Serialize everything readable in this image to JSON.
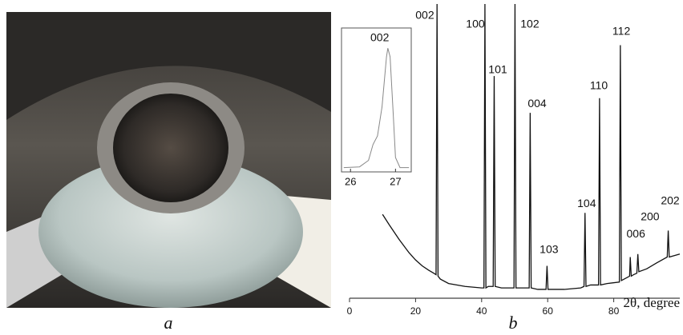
{
  "panel_labels": [
    "a",
    "b"
  ],
  "chart_data": [
    {
      "type": "line",
      "x_label": "2θ, degree",
      "x": [
        10,
        12,
        15,
        18,
        20,
        22,
        24,
        25.5,
        26.2,
        26.5,
        26.8,
        27.5,
        30,
        35,
        40,
        40.7,
        41,
        41.3,
        42,
        43.5,
        43.8,
        44.1,
        46,
        49.8,
        50.1,
        50.4,
        52,
        54.4,
        54.7,
        55,
        57,
        59.5,
        59.8,
        60.1,
        65,
        70,
        71,
        71.3,
        71.6,
        73,
        75.4,
        75.7,
        76,
        78,
        81.7,
        82,
        82.3,
        84,
        84.8,
        85,
        85.3,
        86,
        87,
        87.3,
        87.6,
        90,
        93,
        96.2,
        96.5,
        96.8,
        100
      ],
      "series": [
        {
          "color": "#111111",
          "values": [
            28.5,
            25,
            20,
            15.5,
            13,
            11,
            9.5,
            8.5,
            8,
            100,
            7.5,
            6.5,
            5,
            4,
            3.5,
            3.5,
            100,
            3.5,
            4,
            4,
            75.5,
            4,
            3.5,
            3.5,
            100,
            3.5,
            3.5,
            3.5,
            63,
            3.5,
            3,
            3,
            11,
            3,
            3,
            3.5,
            4,
            29,
            4,
            4.5,
            4.5,
            68,
            4.5,
            5,
            5.5,
            86,
            6,
            7,
            7.5,
            14,
            7.5,
            8,
            8.5,
            15,
            9,
            10,
            12,
            14,
            23,
            14,
            15
          ]
        }
      ],
      "xlim": [
        0,
        100
      ],
      "xticks": [
        0,
        20,
        40,
        60,
        80
      ],
      "ylim": [
        0,
        100
      ],
      "annotations": [
        {
          "text": "002",
          "x": 22.8,
          "y": 96
        },
        {
          "text": "100",
          "x": 38.1,
          "y": 93
        },
        {
          "text": "101",
          "x": 44.9,
          "y": 77.5
        },
        {
          "text": "102",
          "x": 54.6,
          "y": 93
        },
        {
          "text": "004",
          "x": 56.8,
          "y": 66
        },
        {
          "text": "103",
          "x": 60.4,
          "y": 16.3
        },
        {
          "text": "104",
          "x": 71.8,
          "y": 32
        },
        {
          "text": "110",
          "x": 75.5,
          "y": 72
        },
        {
          "text": "112",
          "x": 82.3,
          "y": 90.5
        },
        {
          "text": "006",
          "x": 86.7,
          "y": 21.7
        },
        {
          "text": "200",
          "x": 91,
          "y": 27.5
        },
        {
          "text": "202",
          "x": 97.1,
          "y": 33
        }
      ]
    },
    {
      "type": "line",
      "x": [
        25.85,
        26.2,
        26.4,
        26.5,
        26.6,
        26.7,
        26.8,
        26.83,
        26.88,
        26.95,
        27.0,
        27.1,
        27.3
      ],
      "series": [
        {
          "color": "#888888",
          "values": [
            3,
            3.5,
            8,
            19,
            25,
            45,
            80,
            86,
            80,
            40,
            10,
            3,
            3
          ]
        }
      ],
      "xlim": [
        25.8,
        27.35
      ],
      "xticks": [
        26,
        27
      ],
      "ylim": [
        0,
        100
      ],
      "annotations": [
        {
          "text": "002",
          "x": 26.65,
          "y": 93
        }
      ]
    }
  ]
}
